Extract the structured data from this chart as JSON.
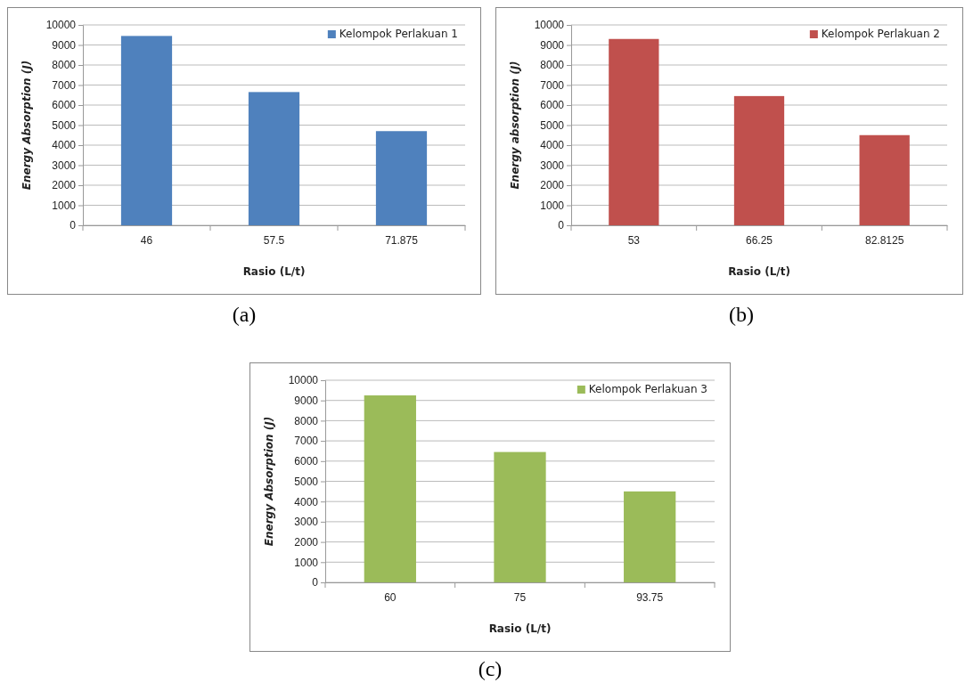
{
  "chart_data": [
    {
      "type": "bar",
      "xlabel": "Rasio (L/t)",
      "ylabel": "Energy Absorption (J)",
      "categories": [
        "46",
        "57.5",
        "71.875"
      ],
      "series": [
        {
          "name": "Kelompok Perlakuan 1",
          "color": "#4f81bd",
          "values": [
            9450,
            6650,
            4700
          ]
        }
      ],
      "ylim": [
        0,
        10000
      ],
      "yticks": [
        0,
        1000,
        2000,
        3000,
        4000,
        5000,
        6000,
        7000,
        8000,
        9000,
        10000
      ],
      "grid": "y",
      "legend": "top right",
      "annotations": [
        "(a)"
      ]
    },
    {
      "type": "bar",
      "xlabel": "Rasio (L/t)",
      "ylabel": "Energy absorption (J)",
      "categories": [
        "53",
        "66.25",
        "82.8125"
      ],
      "series": [
        {
          "name": "Kelompok Perlakuan 2",
          "color": "#c0504d",
          "values": [
            9300,
            6450,
            4500
          ]
        }
      ],
      "ylim": [
        0,
        10000
      ],
      "yticks": [
        0,
        1000,
        2000,
        3000,
        4000,
        5000,
        6000,
        7000,
        8000,
        9000,
        10000
      ],
      "grid": "y",
      "legend": "top right",
      "annotations": [
        "(b)"
      ]
    },
    {
      "type": "bar",
      "xlabel": "Rasio (L/t)",
      "ylabel": "Energy Absorption (J)",
      "categories": [
        "60",
        "75",
        "93.75"
      ],
      "series": [
        {
          "name": "Kelompok Perlakuan 3",
          "color": "#9bbb59",
          "values": [
            9250,
            6450,
            4500
          ]
        }
      ],
      "ylim": [
        0,
        10000
      ],
      "yticks": [
        0,
        1000,
        2000,
        3000,
        4000,
        5000,
        6000,
        7000,
        8000,
        9000,
        10000
      ],
      "grid": "y",
      "legend": "top right",
      "annotations": [
        "(c)"
      ]
    }
  ]
}
